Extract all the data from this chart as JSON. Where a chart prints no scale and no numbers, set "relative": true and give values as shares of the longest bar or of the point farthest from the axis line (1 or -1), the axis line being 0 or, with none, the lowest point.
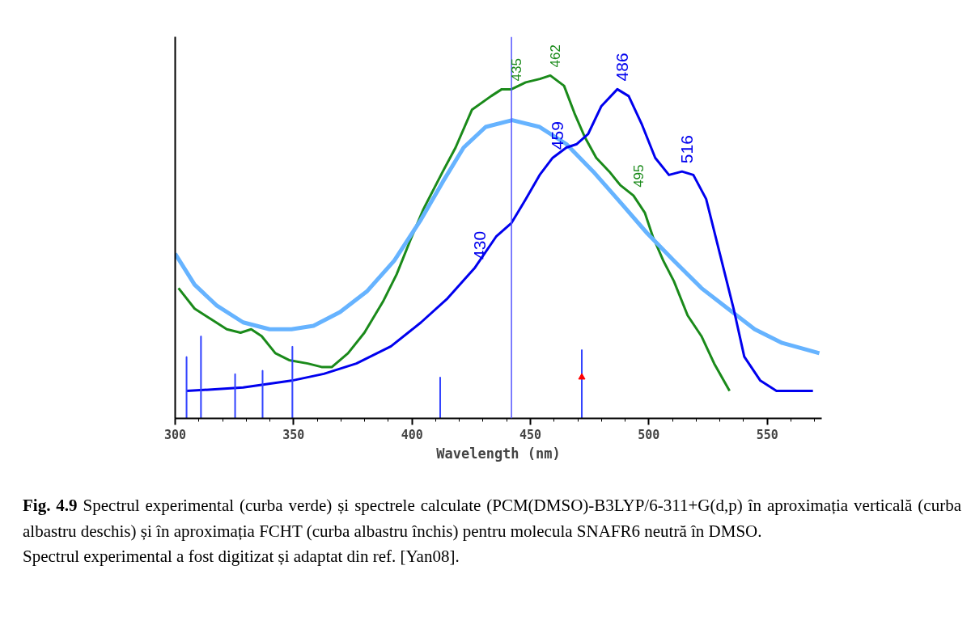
{
  "chart_data": {
    "type": "line",
    "relative": true,
    "xlabel": "Wavelength (nm)",
    "xlim": [
      300,
      573
    ],
    "xticks": [
      300,
      350,
      400,
      450,
      500,
      550
    ],
    "grid": false,
    "series": [
      {
        "color": "#1a8a1a",
        "x": [
          301.4,
          308.2,
          315,
          321.8,
          327.6,
          332.1,
          336.5,
          342.3,
          348.1,
          356,
          361.8,
          366.2,
          373,
          379.9,
          387.7,
          393.5,
          399.3,
          404.8,
          413,
          418.4,
          425.3,
          433.4,
          437.9,
          442,
          448,
          454,
          458.4,
          464.2,
          468.6,
          473,
          477.8,
          483.3,
          488,
          493.5,
          498.3,
          501.7,
          506.1,
          510.6,
          516.4,
          522.2,
          527.6,
          534.1
        ],
        "values": [
          0.38,
          0.32,
          0.29,
          0.26,
          0.25,
          0.26,
          0.24,
          0.19,
          0.17,
          0.16,
          0.15,
          0.15,
          0.19,
          0.25,
          0.34,
          0.42,
          0.52,
          0.61,
          0.72,
          0.79,
          0.9,
          0.94,
          0.96,
          0.96,
          0.98,
          0.99,
          1.0,
          0.97,
          0.89,
          0.82,
          0.76,
          0.72,
          0.68,
          0.65,
          0.6,
          0.53,
          0.46,
          0.4,
          0.3,
          0.24,
          0.16,
          0.08
        ]
      },
      {
        "color": "#66b3ff",
        "x": [
          300,
          308.2,
          317.4,
          328.7,
          339.9,
          349.1,
          358.4,
          369.6,
          380.9,
          392.5,
          403.8,
          413,
          421.8,
          431.1,
          442.3,
          453.9,
          465.2,
          476.5,
          488,
          499.3,
          510.6,
          522.2,
          533.4,
          544.7,
          556.3,
          572
        ],
        "values": [
          0.48,
          0.39,
          0.33,
          0.28,
          0.26,
          0.26,
          0.27,
          0.31,
          0.37,
          0.46,
          0.58,
          0.69,
          0.79,
          0.85,
          0.87,
          0.85,
          0.8,
          0.72,
          0.63,
          0.54,
          0.46,
          0.38,
          0.32,
          0.26,
          0.22,
          0.19
        ]
      },
      {
        "color": "#0000ee",
        "x": [
          304.8,
          328.7,
          349.1,
          362.8,
          376.5,
          391.1,
          403.8,
          415,
          426.6,
          435.5,
          442,
          448.1,
          453.9,
          459.4,
          465.2,
          469.6,
          474.4,
          479.9,
          486.7,
          491.5,
          496.9,
          502.7,
          508.5,
          514,
          518.8,
          524.2,
          530,
          535.8,
          540.3,
          547.1,
          553.9,
          569.3
        ],
        "values": [
          0.08,
          0.09,
          0.11,
          0.13,
          0.16,
          0.21,
          0.28,
          0.35,
          0.44,
          0.53,
          0.57,
          0.64,
          0.71,
          0.76,
          0.79,
          0.8,
          0.83,
          0.91,
          0.96,
          0.94,
          0.86,
          0.76,
          0.71,
          0.72,
          0.71,
          0.64,
          0.48,
          0.32,
          0.18,
          0.11,
          0.08,
          0.08
        ]
      },
      {
        "type": "bar",
        "color": "#3344ff",
        "x": [
          304.8,
          310.9,
          325.3,
          336.9,
          349.5,
          411.9,
          471.7
        ],
        "values": [
          0.18,
          0.24,
          0.13,
          0.14,
          0.21,
          0.12,
          0.2
        ]
      },
      {
        "type": "scatter",
        "color": "#ff0000",
        "marker": "triangle",
        "x": [
          471.7
        ],
        "values": [
          0.12
        ]
      }
    ],
    "ref_lines": [
      {
        "axis": "x",
        "value": 442,
        "color": "#5555ff"
      }
    ],
    "annotations": [
      {
        "text": "435",
        "x": 442,
        "y": 0.96
      },
      {
        "text": "462",
        "x": 458.4,
        "y": 1.0
      },
      {
        "text": "486",
        "x": 486.7,
        "y": 0.96
      },
      {
        "text": "459",
        "x": 459.4,
        "y": 0.76
      },
      {
        "text": "516",
        "x": 514,
        "y": 0.72
      },
      {
        "text": "495",
        "x": 493.5,
        "y": 0.65
      },
      {
        "text": "430",
        "x": 426.6,
        "y": 0.44
      },
      "Fig. 4.9",
      "Spectrul experimental (curba verde) și spectrele calculate (PCM(DMSO)-B3LYP/6-311+G(d,p) în aproximația verticală (curba albastru deschis) și în aproximația FCHT (curba albastru închis) pentru molecula SNAFR6 neutră în DMSO.",
      "Spectrul experimental a fost digitizat și adaptat din ref. [Yan08]."
    ]
  }
}
